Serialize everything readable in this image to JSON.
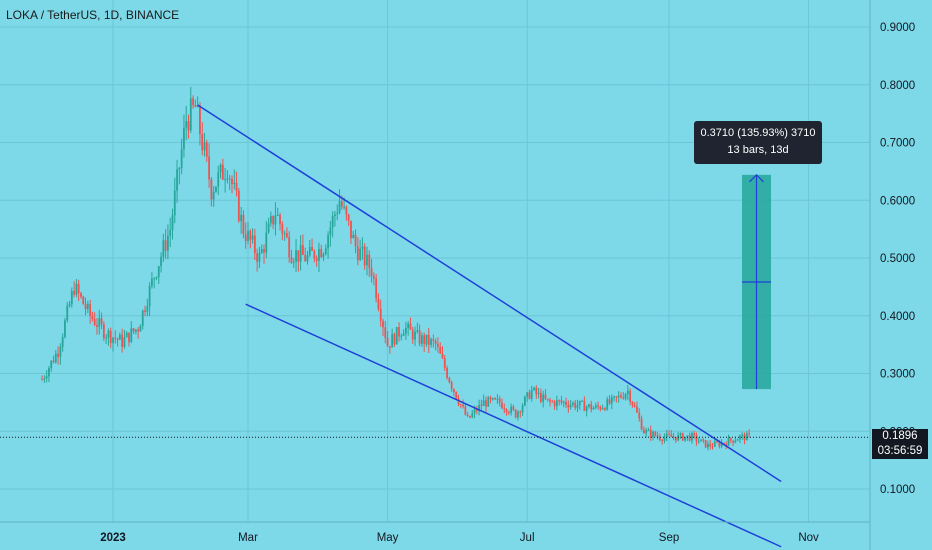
{
  "header": {
    "title": "LOKA / TetherUS, 1D, BINANCE"
  },
  "colors": {
    "background": "#7dd9e8",
    "up_candle": "#26a69a",
    "down_candle": "#ef5350",
    "trendline": "#1e40d8",
    "measure_fill": "#26a69a",
    "tooltip_bg": "#1f2430"
  },
  "measure": {
    "line1": "0.3710 (135.93%) 3710",
    "line2": "13 bars, 13d",
    "from_price": 0.273,
    "to_price": 0.644
  },
  "price_badge": {
    "value": "0.1896",
    "countdown": "03:56:59"
  },
  "chart_data": {
    "type": "candlestick",
    "title": "LOKA / TetherUS, 1D, BINANCE",
    "y_ticks": [
      "0.9000",
      "0.8000",
      "0.7000",
      "0.6000",
      "0.5000",
      "0.4000",
      "0.3000",
      "0.2000",
      "0.1000"
    ],
    "x_ticks": [
      "2023",
      "Mar",
      "May",
      "Jul",
      "Sep",
      "Nov"
    ],
    "ylim": [
      0.0,
      0.95
    ],
    "last_price": 0.1896,
    "series": [
      {
        "name": "",
        "points": [
          [
            "2022-12-01",
            0.29
          ],
          [
            "2022-12-08",
            0.34
          ],
          [
            "2022-12-15",
            0.45
          ],
          [
            "2022-12-22",
            0.4
          ],
          [
            "2022-12-29",
            0.37
          ],
          [
            "2023-01-05",
            0.355
          ],
          [
            "2023-01-12",
            0.38
          ],
          [
            "2023-01-19",
            0.47
          ],
          [
            "2023-01-26",
            0.55
          ],
          [
            "2023-02-02",
            0.74
          ],
          [
            "2023-02-06",
            0.76
          ],
          [
            "2023-02-13",
            0.62
          ],
          [
            "2023-02-20",
            0.66
          ],
          [
            "2023-02-27",
            0.55
          ],
          [
            "2023-03-06",
            0.5
          ],
          [
            "2023-03-13",
            0.58
          ],
          [
            "2023-03-20",
            0.51
          ],
          [
            "2023-03-27",
            0.5
          ],
          [
            "2023-04-03",
            0.52
          ],
          [
            "2023-04-10",
            0.6
          ],
          [
            "2023-04-17",
            0.52
          ],
          [
            "2023-04-24",
            0.48
          ],
          [
            "2023-05-01",
            0.35
          ],
          [
            "2023-05-08",
            0.38
          ],
          [
            "2023-05-15",
            0.36
          ],
          [
            "2023-05-22",
            0.35
          ],
          [
            "2023-05-29",
            0.28
          ],
          [
            "2023-06-05",
            0.22
          ],
          [
            "2023-06-12",
            0.25
          ],
          [
            "2023-06-19",
            0.25
          ],
          [
            "2023-06-26",
            0.23
          ],
          [
            "2023-07-03",
            0.27
          ],
          [
            "2023-07-10",
            0.25
          ],
          [
            "2023-07-17",
            0.25
          ],
          [
            "2023-07-24",
            0.245
          ],
          [
            "2023-07-31",
            0.24
          ],
          [
            "2023-08-07",
            0.25
          ],
          [
            "2023-08-14",
            0.27
          ],
          [
            "2023-08-21",
            0.2
          ],
          [
            "2023-08-28",
            0.19
          ],
          [
            "2023-09-04",
            0.19
          ],
          [
            "2023-09-11",
            0.19
          ],
          [
            "2023-09-18",
            0.175
          ],
          [
            "2023-09-25",
            0.18
          ],
          [
            "2023-10-02",
            0.19
          ],
          [
            "2023-10-07",
            0.1896
          ]
        ]
      }
    ],
    "trendlines": [
      {
        "name": "",
        "from": [
          "2023-02-07",
          0.765
        ],
        "to": [
          "2023-10-20",
          0.113
        ]
      },
      {
        "name": "",
        "from": [
          "2023-02-28",
          0.42
        ],
        "to": [
          "2023-10-20",
          -0.0
        ]
      }
    ]
  }
}
